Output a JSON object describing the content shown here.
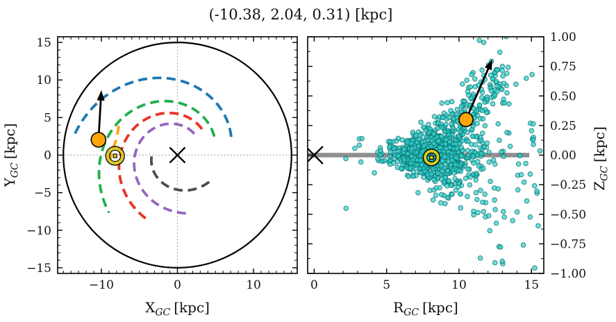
{
  "figure": {
    "title": "(-10.38, 2.04, 0.31) [kpc]"
  },
  "chart_data": {
    "figure_title": "(-10.38, 2.04, 0.31) [kpc]",
    "object_coordinates_kpc": {
      "x": -10.38,
      "y": 2.04,
      "z": 0.31,
      "r_gc": 10.48
    },
    "colors": {
      "scatter_fill": "#2fd0ca",
      "scatter_edge": "#0b6f6f",
      "object_orange": "#ffa507",
      "sun_yellow": "#d9c81e",
      "midplane_bar": "#8f8f8f",
      "crosshair": "#999999",
      "disk_outline": "#000000"
    },
    "panels": [
      {
        "id": "xy",
        "type": "line",
        "xlabel": {
          "base": "X",
          "sub": "GC",
          "unit": "[kpc]"
        },
        "ylabel": {
          "base": "Y",
          "sub": "GC",
          "unit": "[kpc]"
        },
        "xlim": [
          -15.75,
          15.75
        ],
        "ylim": [
          -15.75,
          15.75
        ],
        "xticks": {
          "major": [
            -10,
            0,
            10
          ],
          "labels": [
            "−10",
            "0",
            "10"
          ],
          "minor_step": 1
        },
        "yticks": {
          "major": [
            -15,
            -10,
            -5,
            0,
            5,
            10,
            15
          ],
          "labels": [
            "−15",
            "−10",
            "−5",
            "0",
            "5",
            "10",
            "15"
          ],
          "minor_step": 1
        },
        "grid": "dotted-crosshair-at-zero",
        "outer_disk_radius_kpc": 15,
        "galactic_center": {
          "x": 0,
          "y": 0
        },
        "sun": {
          "x": -8.2,
          "y": -0.1
        },
        "object": {
          "x": -10.38,
          "y": 2.04
        },
        "arrow": {
          "x1": -10.38,
          "y1": 2.04,
          "x2": -10.0,
          "y2": 8.65
        },
        "spiral_arms": [
          {
            "name": "outer-arm-blue",
            "color": "#1f77b4",
            "r90": 10.0,
            "pitch_k": 0.235,
            "theta_deg": [
              19,
              170
            ]
          },
          {
            "name": "perseus-arm-green",
            "color": "#21ad4b",
            "r90": 7.0,
            "pitch_k": 0.23,
            "theta_deg": [
              27,
              221
            ]
          },
          {
            "name": "sagittarius-arm-red",
            "color": "#ea3323",
            "r90": 5.5,
            "pitch_k": 0.2,
            "theta_deg": [
              47,
              247
            ]
          },
          {
            "name": "scutum-arm-purple",
            "color": "#9467bd",
            "r90": 4.1,
            "pitch_k": 0.197,
            "theta_deg": [
              52,
              284
            ]
          },
          {
            "name": "norma-arm-gray",
            "color": "#4d4d4d",
            "r90": 2.46,
            "pitch_k": 0.2,
            "theta_deg": [
              183,
              324
            ]
          },
          {
            "name": "local-arm-orange",
            "color": "#ffa508",
            "points": [
              [
                -7.7,
                3.9
              ],
              [
                -8.1,
                1.9
              ],
              [
                -8.7,
                0.2
              ],
              [
                -9.0,
                -1.6
              ]
            ]
          }
        ]
      },
      {
        "id": "rz",
        "type": "scatter",
        "xlabel": {
          "base": "R",
          "sub": "GC",
          "unit": "[kpc]"
        },
        "ylabel": {
          "base": "Z",
          "sub": "GC",
          "unit": "[kpc]"
        },
        "xlim": [
          -0.45,
          15.85
        ],
        "ylim": [
          -1.0,
          1.0
        ],
        "xticks": {
          "major": [
            0,
            5,
            10,
            15
          ],
          "labels": [
            "0",
            "5",
            "10",
            "15"
          ],
          "minor_step": 1
        },
        "yticks": {
          "major": [
            1.0,
            0.75,
            0.5,
            0.25,
            0.0,
            -0.25,
            -0.5,
            -0.75,
            -1.0
          ],
          "labels": [
            "1.00",
            "0.75",
            "0.50",
            "0.25",
            "0.00",
            "−0.25",
            "−0.50",
            "−0.75",
            "−1.00"
          ],
          "minor_step": 0.125
        },
        "midplane_bar": {
          "r_from": -0.45,
          "r_to": 14.85,
          "thickness_px": 6.5
        },
        "galactic_center": {
          "r": 0,
          "z": 0
        },
        "sun": {
          "r": 8.1,
          "z": -0.02
        },
        "object": {
          "r": 10.48,
          "z": 0.3
        },
        "arrow": {
          "r1": 10.48,
          "z1": 0.3,
          "r2": 12.3,
          "z2": 0.81
        },
        "scatter_summary": "cluster of ~950 cyan stars, dense core R 5-11 kpc near Z=0, vertical spread flaring to +/-1 kpc by R~13-15, upward plume toward (12.5, 0.8)",
        "scatter_model": {
          "seed": 42,
          "point_radius_px": 3.3,
          "components": [
            {
              "type": "core",
              "n": 700,
              "r_mean": 8.3,
              "r_sd": 1.7,
              "r_min": 4.2,
              "r_max": 13.5,
              "z_base": 0.04,
              "z_coef": 0.009,
              "z_pow": 1.6
            },
            {
              "type": "plume",
              "n": 140,
              "r_start": 8.6,
              "r_span": 4.3,
              "r_jit": 0.55,
              "z_start": 0.04,
              "z_slope": 0.64,
              "z_jit": 0.13,
              "t_pow": 0.85
            },
            {
              "type": "tail",
              "n": 80,
              "r_min": 10.5,
              "r_max": 15.6,
              "z_sd": 0.5
            },
            {
              "type": "left",
              "n": 8,
              "r_min": 2.0,
              "r_max": 4.6,
              "z_sd": 0.07
            }
          ],
          "extra_points": [
            [
              2.2,
              -0.45
            ],
            [
              3.3,
              0.14
            ],
            [
              11.4,
              0.97
            ]
          ]
        }
      }
    ]
  }
}
